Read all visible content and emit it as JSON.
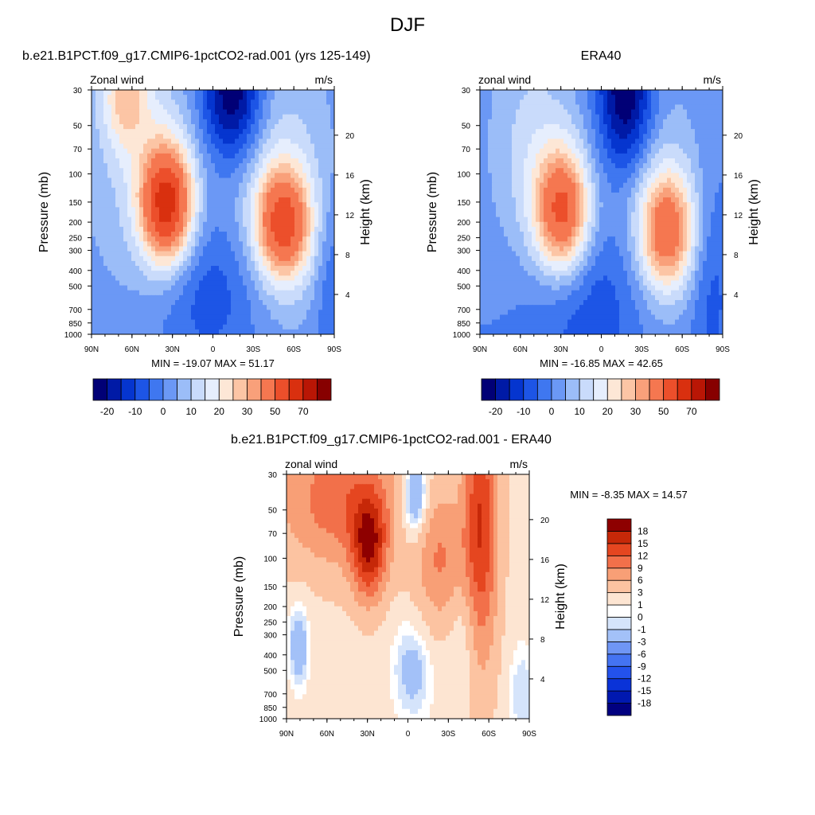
{
  "page": {
    "title": "DJF"
  },
  "chart_data": [
    {
      "type": "heatmap",
      "title": "b.e21.B1PCT.f09_g17.CMIP6-1pctCO2-rad.001 (yrs 125-149)",
      "field_left": "Zonal wind",
      "units": "m/s",
      "ylabel": "Pressure (mb)",
      "ylabel_right": "Height (km)",
      "x_ticks": [
        "90N",
        "60N",
        "30N",
        "0",
        "30S",
        "60S",
        "90S"
      ],
      "y_ticks": [
        30,
        50,
        70,
        100,
        150,
        200,
        250,
        300,
        400,
        500,
        700,
        850,
        1000
      ],
      "y_right_ticks": [
        4,
        8,
        12,
        16,
        20
      ],
      "stats": "MIN = -19.07  MAX =  51.17",
      "min": -19.07,
      "max": 51.17,
      "colorbar": {
        "levels": [
          -25,
          -20,
          -15,
          -10,
          -5,
          0,
          5,
          10,
          15,
          20,
          25,
          30,
          40,
          50,
          60,
          70
        ],
        "tick_labels": [
          "-20",
          "-10",
          "0",
          "10",
          "20",
          "30",
          "50",
          "70"
        ],
        "colors": [
          "#010076",
          "#001aa6",
          "#0535cf",
          "#1d55e6",
          "#3f77f0",
          "#6b98f5",
          "#9bbdf8",
          "#c9dbfb",
          "#e6eefd",
          "#fde7d6",
          "#fcc5a5",
          "#f9a07a",
          "#f57750",
          "#ec4f2b",
          "#d9300f",
          "#b91605",
          "#870000"
        ]
      }
    },
    {
      "type": "heatmap",
      "title": "ERA40",
      "field_left": "zonal wind",
      "units": "m/s",
      "ylabel": "Pressure (mb)",
      "ylabel_right": "Height (km)",
      "x_ticks": [
        "90N",
        "60N",
        "30N",
        "0",
        "30S",
        "60S",
        "90S"
      ],
      "y_ticks": [
        30,
        50,
        70,
        100,
        150,
        200,
        250,
        300,
        400,
        500,
        700,
        850,
        1000
      ],
      "y_right_ticks": [
        4,
        8,
        12,
        16,
        20
      ],
      "stats": "MIN = -16.85  MAX =  42.65",
      "min": -16.85,
      "max": 42.65,
      "colorbar": {
        "levels": [
          -25,
          -20,
          -15,
          -10,
          -5,
          0,
          5,
          10,
          15,
          20,
          25,
          30,
          40,
          50,
          60,
          70
        ],
        "tick_labels": [
          "-20",
          "-10",
          "0",
          "10",
          "20",
          "30",
          "50",
          "70"
        ],
        "colors": [
          "#010076",
          "#001aa6",
          "#0535cf",
          "#1d55e6",
          "#3f77f0",
          "#6b98f5",
          "#9bbdf8",
          "#c9dbfb",
          "#e6eefd",
          "#fde7d6",
          "#fcc5a5",
          "#f9a07a",
          "#f57750",
          "#ec4f2b",
          "#d9300f",
          "#b91605",
          "#870000"
        ]
      }
    },
    {
      "type": "heatmap",
      "title": "b.e21.B1PCT.f09_g17.CMIP6-1pctCO2-rad.001 - ERA40",
      "field_left": "zonal wind",
      "units": "m/s",
      "ylabel": "Pressure (mb)",
      "ylabel_right": "Height (km)",
      "x_ticks": [
        "90N",
        "60N",
        "30N",
        "0",
        "30S",
        "60S",
        "90S"
      ],
      "y_ticks": [
        30,
        50,
        70,
        100,
        150,
        200,
        250,
        300,
        400,
        500,
        700,
        850,
        1000
      ],
      "y_right_ticks": [
        4,
        8,
        12,
        16,
        20
      ],
      "stats": "MIN =  -8.35  MAX =  14.57",
      "min": -8.35,
      "max": 14.57,
      "colorbar": {
        "levels": [
          -18,
          -15,
          -12,
          -9,
          -6,
          -3,
          -1,
          0,
          1,
          3,
          6,
          9,
          12,
          15,
          18
        ],
        "tick_labels": [
          "-18",
          "-15",
          "-12",
          "-9",
          "-6",
          "-3",
          "-1",
          "0",
          "1",
          "3",
          "6",
          "9",
          "12",
          "15",
          "18"
        ],
        "colors": [
          "#010080",
          "#0018b0",
          "#0a33d8",
          "#2352ec",
          "#4473f2",
          "#6f96f5",
          "#a3c1f8",
          "#d5e4fb",
          "#ffffff",
          "#fde5d2",
          "#fcc3a1",
          "#f89f76",
          "#f2704a",
          "#e54620",
          "#c62808",
          "#8e0000"
        ]
      }
    }
  ]
}
